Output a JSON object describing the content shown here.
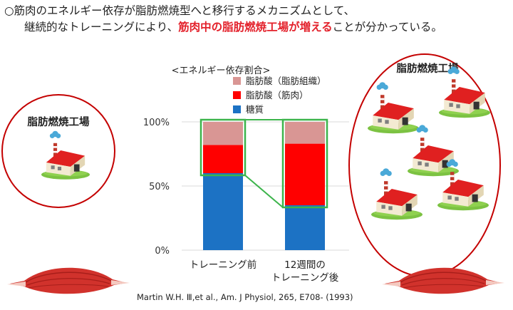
{
  "heading": {
    "line1": "○筋肉のエネルギー依存が脂肪燃焼型へと移行するメカニズムとして、",
    "line2_before": "継続的なトレーニングにより、",
    "line2_highlight": "筋肉中の脂肪燃焼工場が増える",
    "line2_after": "ことが分かっている。",
    "highlight_color": "#e3202a"
  },
  "left_circle": {
    "label": "脂肪燃焼工場",
    "factory_count": 1
  },
  "right_circle": {
    "label": "脂肪燃焼工場",
    "factory_count": 5
  },
  "icons": [
    "factory-icon",
    "muscle-icon",
    "smoke-cloud-icon"
  ],
  "chart_data": {
    "type": "bar",
    "stacked": true,
    "title": "<エネルギー依存割合>",
    "categories": [
      "トレーニング前",
      "12週間の\nトレーニング後"
    ],
    "series": [
      {
        "name": "糖質",
        "color": "#1c72c4",
        "values": [
          60,
          35
        ]
      },
      {
        "name": "脂肪酸（筋肉）",
        "color": "#ff0000",
        "values": [
          22,
          48
        ]
      },
      {
        "name": "脂肪酸（脂肪組織）",
        "color": "#d99694",
        "values": [
          18,
          17
        ]
      }
    ],
    "ylim": [
      0,
      100
    ],
    "yticks": [
      {
        "value": 0,
        "label": "0%"
      },
      {
        "value": 50,
        "label": "50%"
      },
      {
        "value": 100,
        "label": "100%"
      }
    ],
    "legend_position": "top",
    "highlight_color": "#3cb44b"
  },
  "citation": "Martin W.H. Ⅲ,et al., Am. J Physiol, 265, E708- (1993)"
}
